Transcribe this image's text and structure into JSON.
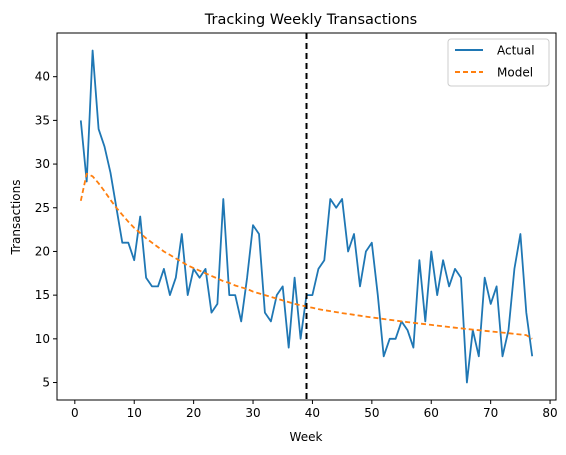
{
  "chart_data": {
    "type": "line",
    "title": "Tracking Weekly Transactions",
    "xlabel": "Week",
    "ylabel": "Transactions",
    "xlim": [
      -3,
      81
    ],
    "ylim": [
      3,
      45
    ],
    "xticks": [
      0,
      10,
      20,
      30,
      40,
      50,
      60,
      70,
      80
    ],
    "yticks": [
      5,
      10,
      15,
      20,
      25,
      30,
      35,
      40
    ],
    "grid": false,
    "legend_position": "top-right",
    "vline": {
      "x": 39,
      "style": "dashed",
      "color": "#000000"
    },
    "x": [
      1,
      2,
      3,
      4,
      5,
      6,
      7,
      8,
      9,
      10,
      11,
      12,
      13,
      14,
      15,
      16,
      17,
      18,
      19,
      20,
      21,
      22,
      23,
      24,
      25,
      26,
      27,
      28,
      29,
      30,
      31,
      32,
      33,
      34,
      35,
      36,
      37,
      38,
      39,
      40,
      41,
      42,
      43,
      44,
      45,
      46,
      47,
      48,
      49,
      50,
      51,
      52,
      53,
      54,
      55,
      56,
      57,
      58,
      59,
      60,
      61,
      62,
      63,
      64,
      65,
      66,
      67,
      68,
      69,
      70,
      71,
      72,
      73,
      74,
      75,
      76,
      77
    ],
    "series": [
      {
        "name": "Actual",
        "style": "solid",
        "color": "#1f77b4",
        "values": [
          35,
          28,
          43,
          34,
          32,
          29,
          25,
          21,
          21,
          19,
          24,
          17,
          16,
          16,
          18,
          15,
          17,
          22,
          15,
          18,
          17,
          18,
          13,
          14,
          26,
          15,
          15,
          12,
          17,
          23,
          22,
          13,
          12,
          15,
          16,
          9,
          17,
          10,
          15,
          15,
          18,
          19,
          26,
          25,
          26,
          20,
          22,
          16,
          20,
          21,
          15,
          8,
          10,
          10,
          12,
          11,
          9,
          19,
          12,
          20,
          15,
          19,
          16,
          18,
          17,
          5,
          11,
          8,
          17,
          14,
          16,
          8,
          11,
          18,
          22,
          13,
          8
        ]
      },
      {
        "name": "Model",
        "style": "dashed",
        "color": "#ff7f0e",
        "values": [
          25.8,
          28.9,
          28.6,
          27.8,
          26.9,
          25.9,
          25.0,
          24.2,
          23.4,
          22.7,
          22.1,
          21.5,
          21.0,
          20.5,
          20.0,
          19.6,
          19.2,
          18.8,
          18.4,
          18.1,
          17.8,
          17.5,
          17.2,
          16.9,
          16.6,
          16.4,
          16.1,
          15.9,
          15.7,
          15.4,
          15.2,
          15.0,
          14.8,
          14.6,
          14.4,
          14.2,
          14.0,
          13.85,
          13.7,
          13.55,
          13.4,
          13.28,
          13.17,
          13.06,
          12.95,
          12.85,
          12.75,
          12.65,
          12.55,
          12.45,
          12.36,
          12.27,
          12.18,
          12.09,
          12.0,
          11.91,
          11.83,
          11.75,
          11.67,
          11.59,
          11.51,
          11.43,
          11.35,
          11.27,
          11.2,
          11.13,
          11.06,
          10.99,
          10.92,
          10.85,
          10.78,
          10.71,
          10.64,
          10.57,
          10.5,
          10.43,
          10.0
        ]
      }
    ]
  }
}
